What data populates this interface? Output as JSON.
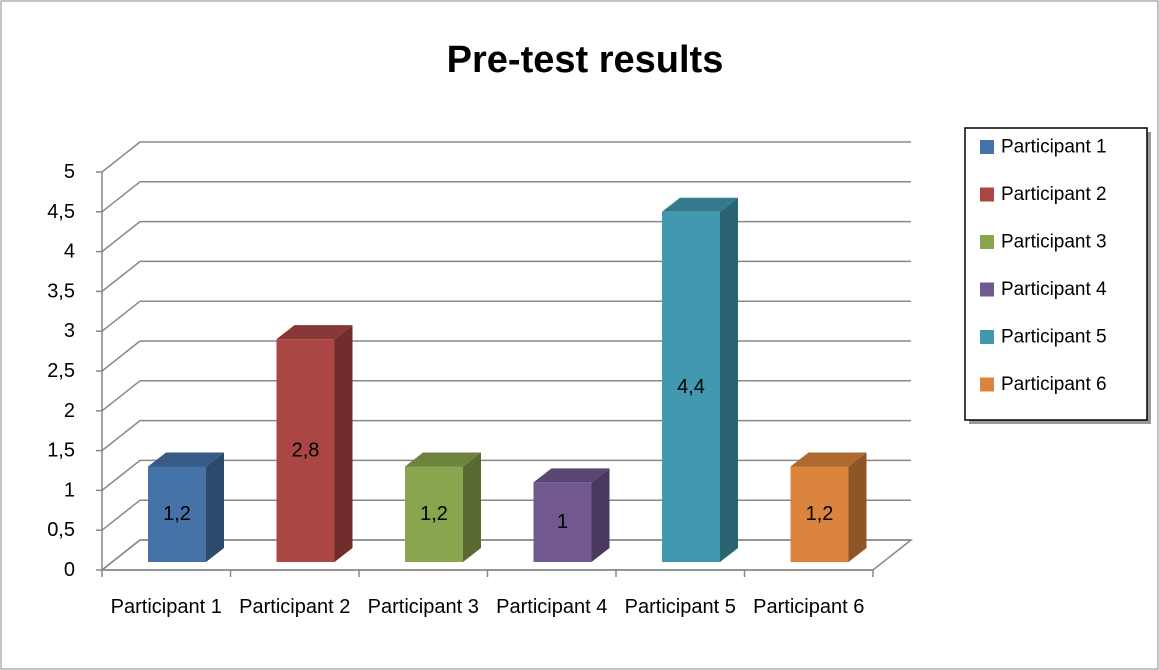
{
  "chart_data": {
    "type": "bar3d",
    "title": "Pre-test results",
    "categories": [
      "Participant 1",
      "Participant 2",
      "Participant 3",
      "Participant 4",
      "Participant 5",
      "Participant 6"
    ],
    "values": [
      1.2,
      2.8,
      1.2,
      1,
      4.4,
      1.2
    ],
    "value_labels": [
      "1,2",
      "2,8",
      "1,2",
      "1",
      "4,4",
      "1,2"
    ],
    "colors": [
      "#4572a7",
      "#aa4643",
      "#89a54e",
      "#71588f",
      "#4198af",
      "#db843d"
    ],
    "ylim": [
      0,
      5
    ],
    "yticks": [
      0,
      {
        "value": 0.5,
        "label": "0,5"
      },
      1,
      {
        "value": 1.5,
        "label": "1,5"
      },
      2,
      {
        "value": 2.5,
        "label": "2,5"
      },
      3,
      {
        "value": 3.5,
        "label": "3,5"
      },
      4,
      {
        "value": 4.5,
        "label": "4,5"
      },
      5
    ],
    "grid": true,
    "legend": "right"
  }
}
